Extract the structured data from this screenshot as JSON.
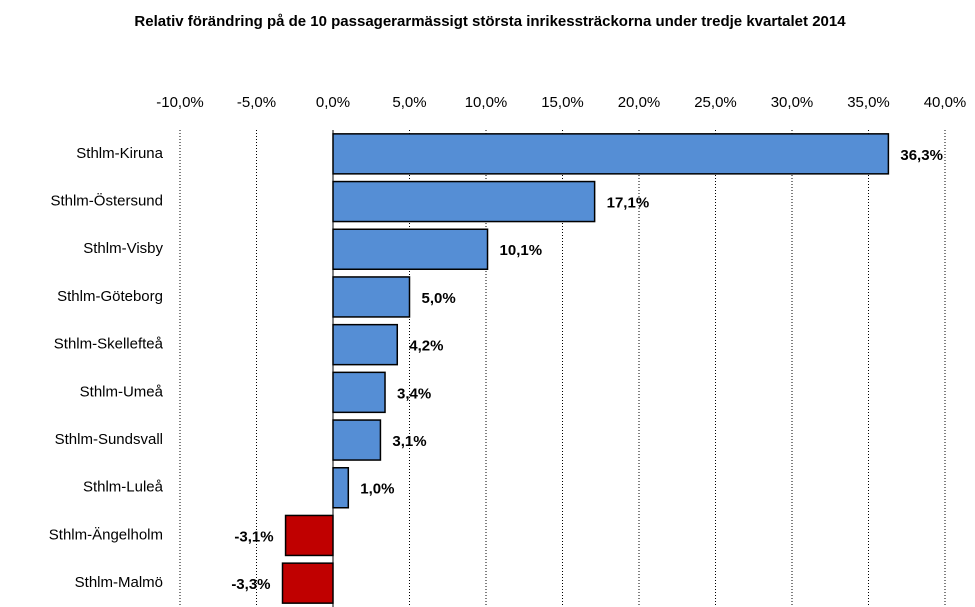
{
  "chart_data": {
    "type": "barh",
    "title": "Relativ förändring på de 10 passagerarmässigt största inrikessträckorna under  tredje kvartalet 2014",
    "categories": [
      "Sthlm-Kiruna",
      "Sthlm-Östersund",
      "Sthlm-Visby",
      "Sthlm-Göteborg",
      "Sthlm-Skellefteå",
      "Sthlm-Umeå",
      "Sthlm-Sundsvall",
      "Sthlm-Luleå",
      "Sthlm-Ängelholm",
      "Sthlm-Malmö"
    ],
    "values": [
      36.3,
      17.1,
      10.1,
      5.0,
      4.2,
      3.4,
      3.1,
      1.0,
      -3.1,
      -3.3
    ],
    "value_labels": [
      "36,3%",
      "17,1%",
      "10,1%",
      "5,0%",
      "4,2%",
      "3,4%",
      "3,1%",
      "1,0%",
      "-3,1%",
      "-3,3%"
    ],
    "color": "#558ed5",
    "negative_color": "#c00000",
    "xlim": [
      -10,
      40
    ],
    "xticks": [
      {
        "value": -10,
        "label": "-10,0%"
      },
      {
        "value": -5,
        "label": "-5,0%"
      },
      {
        "value": 0,
        "label": "0,0%"
      },
      {
        "value": 5,
        "label": "5,0%"
      },
      {
        "value": 10,
        "label": "10,0%"
      },
      {
        "value": 15,
        "label": "15,0%"
      },
      {
        "value": 20,
        "label": "20,0%"
      },
      {
        "value": 25,
        "label": "25,0%"
      },
      {
        "value": 30,
        "label": "30,0%"
      },
      {
        "value": 35,
        "label": "35,0%"
      },
      {
        "value": 40,
        "label": "40,0%"
      }
    ],
    "grid": true
  }
}
